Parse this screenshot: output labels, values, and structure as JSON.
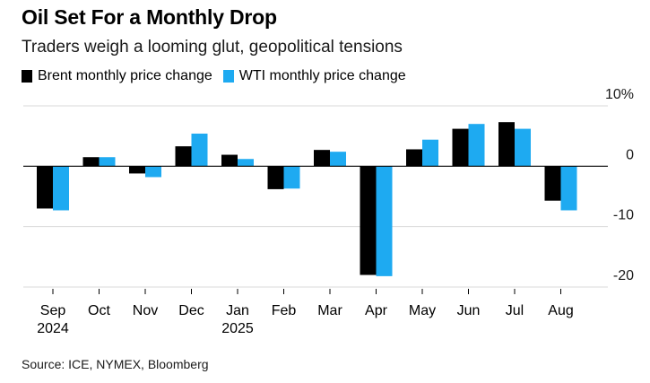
{
  "chart_data": {
    "type": "bar",
    "title": "Oil Set For a Monthly Drop",
    "subtitle": "Traders weigh a looming glut, geopolitical tensions",
    "categories": [
      "Sep",
      "Oct",
      "Nov",
      "Dec",
      "Jan",
      "Feb",
      "Mar",
      "Apr",
      "May",
      "Jun",
      "Jul",
      "Aug"
    ],
    "category_sublabels": [
      "2024",
      "",
      "",
      "",
      "2025",
      "",
      "",
      "",
      "",
      "",
      "",
      ""
    ],
    "series": [
      {
        "name": "Brent monthly price change",
        "color": "#000000",
        "values": [
          -7.0,
          1.5,
          -1.2,
          3.3,
          1.9,
          -3.8,
          2.7,
          -18.0,
          2.8,
          6.2,
          7.3,
          -5.7
        ]
      },
      {
        "name": "WTI monthly price change",
        "color": "#1eaaf1",
        "values": [
          -7.3,
          1.5,
          -1.8,
          5.4,
          1.2,
          -3.7,
          2.4,
          -18.2,
          4.4,
          7.0,
          6.2,
          -7.3
        ]
      }
    ],
    "ylim": [
      -20,
      10
    ],
    "yticks": [
      10,
      0,
      -10,
      -20
    ],
    "ytick_labels": [
      "10%",
      "0",
      "-10",
      "-20"
    ],
    "xlabel": "",
    "ylabel": "",
    "legend_position": "top-left",
    "grid": true,
    "source": "Source: ICE, NYMEX, Bloomberg"
  }
}
